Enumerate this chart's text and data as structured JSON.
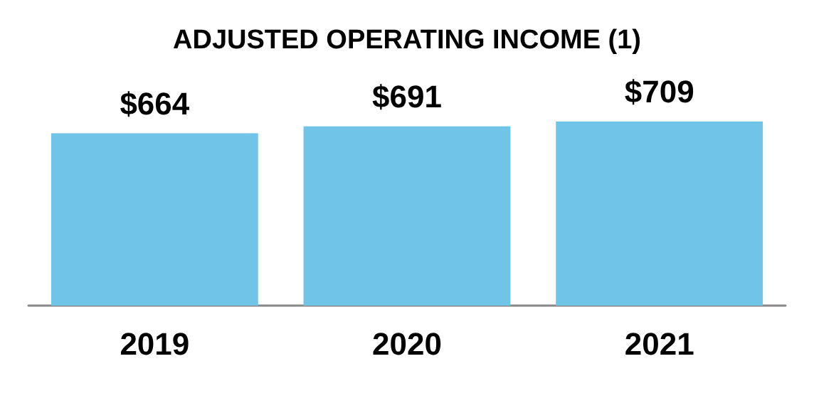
{
  "chart_data": {
    "type": "bar",
    "title": "ADJUSTED OPERATING INCOME (1)",
    "categories": [
      "2019",
      "2020",
      "2021"
    ],
    "values": [
      664,
      691,
      709
    ],
    "value_labels": [
      "$664",
      "$691",
      "$709"
    ],
    "color": "#70c4e8"
  }
}
